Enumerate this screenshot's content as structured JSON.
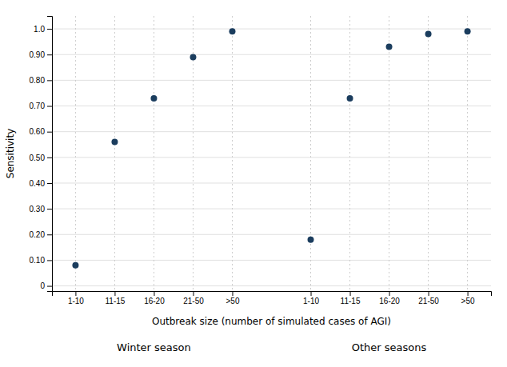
{
  "chart_data": {
    "type": "scatter",
    "x_label": "Outbreak size (number of simulated cases of AGI)",
    "y_label": "Sensitivity",
    "categories": [
      "1-10",
      "11-15",
      "16-20",
      "21-50",
      ">50"
    ],
    "series": [
      {
        "name": "Winter season",
        "values": [
          0.08,
          0.56,
          0.73,
          0.89,
          0.99
        ],
        "error_minus": [
          0.005,
          0.007,
          0.007,
          0.007,
          0.003
        ],
        "error_plus": [
          0.005,
          0.007,
          0.007,
          0.007,
          0.003
        ]
      },
      {
        "name": "Other seasons",
        "values": [
          0.18,
          0.73,
          0.93,
          0.98,
          0.99
        ],
        "error_minus": [
          0.007,
          0.007,
          0.007,
          0.005,
          0.003
        ],
        "error_plus": [
          0.007,
          0.007,
          0.007,
          0.005,
          0.003
        ]
      }
    ],
    "color": "#1b3d5e",
    "ylim": [
      -0.02,
      1.05
    ],
    "yticks": [
      0,
      {
        "value": 0.1,
        "label": "0.10"
      },
      {
        "value": 0.2,
        "label": "0.20"
      },
      {
        "value": 0.3,
        "label": "0.30"
      },
      {
        "value": 0.4,
        "label": "0.40"
      },
      {
        "value": 0.5,
        "label": "0.50"
      },
      {
        "value": 0.6,
        "label": "0.60"
      },
      {
        "value": 0.7,
        "label": "0.70"
      },
      {
        "value": 0.8,
        "label": "0.80"
      },
      {
        "value": 0.9,
        "label": "0.90"
      },
      {
        "value": 1.0,
        "label": "1.0"
      }
    ],
    "grid": true
  }
}
